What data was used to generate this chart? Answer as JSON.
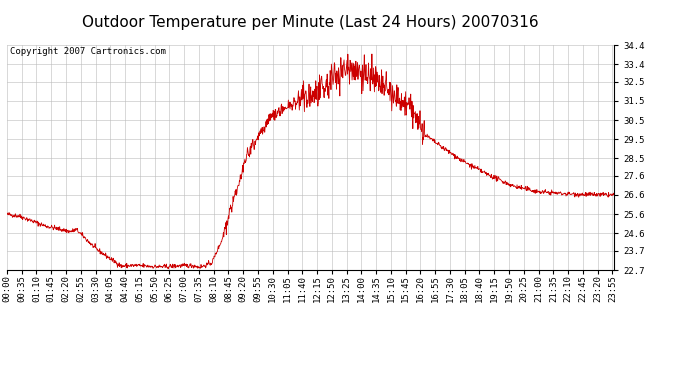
{
  "title": "Outdoor Temperature per Minute (Last 24 Hours) 20070316",
  "copyright_text": "Copyright 2007 Cartronics.com",
  "line_color": "#cc0000",
  "background_color": "#ffffff",
  "plot_bg_color": "#ffffff",
  "grid_color": "#bbbbbb",
  "ylim": [
    22.7,
    34.4
  ],
  "yticks": [
    22.7,
    23.7,
    24.6,
    25.6,
    26.6,
    27.6,
    28.5,
    29.5,
    30.5,
    31.5,
    32.5,
    33.4,
    34.4
  ],
  "title_fontsize": 11,
  "tick_fontsize": 6.5,
  "copyright_fontsize": 6.5
}
